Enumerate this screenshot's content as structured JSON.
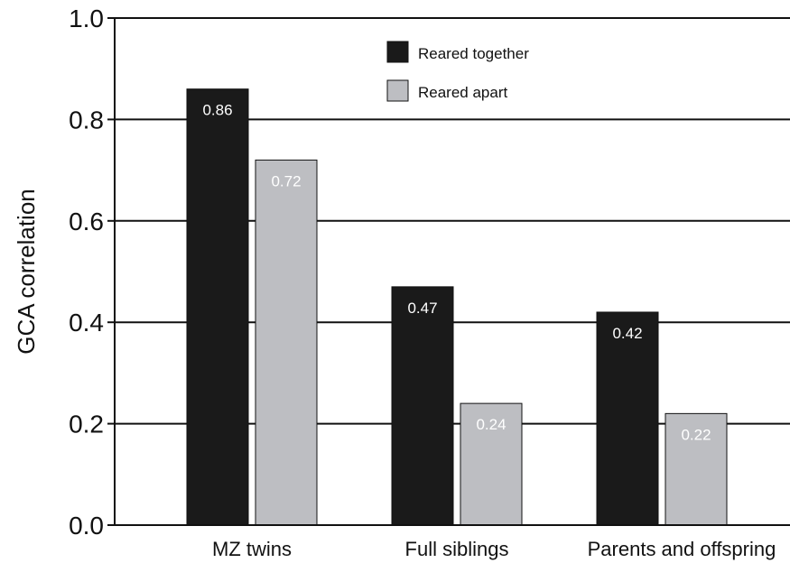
{
  "chart_data": {
    "type": "bar",
    "categories": [
      "MZ twins",
      "Full siblings",
      "Parents and offspring"
    ],
    "series": [
      {
        "name": "Reared together",
        "values": [
          0.86,
          0.47,
          0.42
        ],
        "color": "#1a1a1a"
      },
      {
        "name": "Reared apart",
        "values": [
          0.72,
          0.24,
          0.22
        ],
        "color": "#bdbec2"
      }
    ],
    "data_labels": [
      [
        "0.86",
        "0.47",
        "0.42"
      ],
      [
        "0.72",
        "0.24",
        "0.22"
      ]
    ],
    "title": "",
    "xlabel": "",
    "ylabel": "GCA correlation",
    "ylim": [
      0.0,
      1.0
    ],
    "yticks": [
      "0.0",
      "0.2",
      "0.4",
      "0.6",
      "0.8",
      "1.0"
    ],
    "grid": true,
    "legend_position": "top-center"
  }
}
